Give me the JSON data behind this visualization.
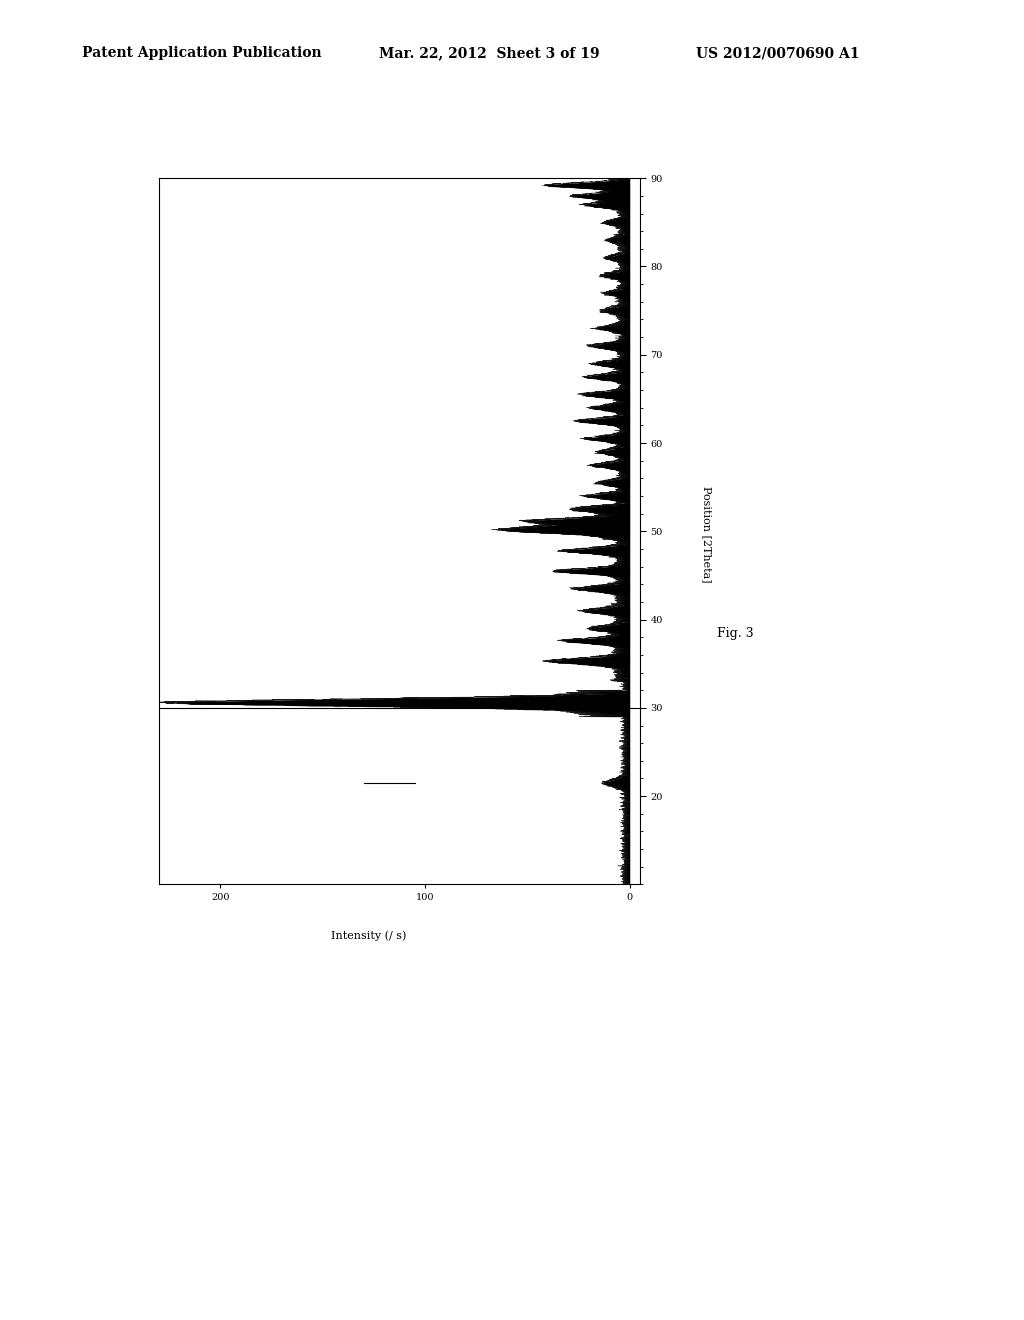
{
  "title_left": "Patent Application Publication",
  "title_mid": "Mar. 22, 2012  Sheet 3 of 19",
  "title_right": "US 2012/0070690 A1",
  "xlabel": "Position [2Theta]",
  "ylabel": "Intensity (/ s)",
  "fig_label": "Fig. 3",
  "xmin": 10,
  "xmax": 90,
  "ymin": 0,
  "ymax": 250,
  "bg_color": "#ffffff",
  "line_color": "#000000",
  "header_fontsize": 10,
  "axis_label_fontsize": 8,
  "tick_fontsize": 7,
  "fig_label_fontsize": 9
}
